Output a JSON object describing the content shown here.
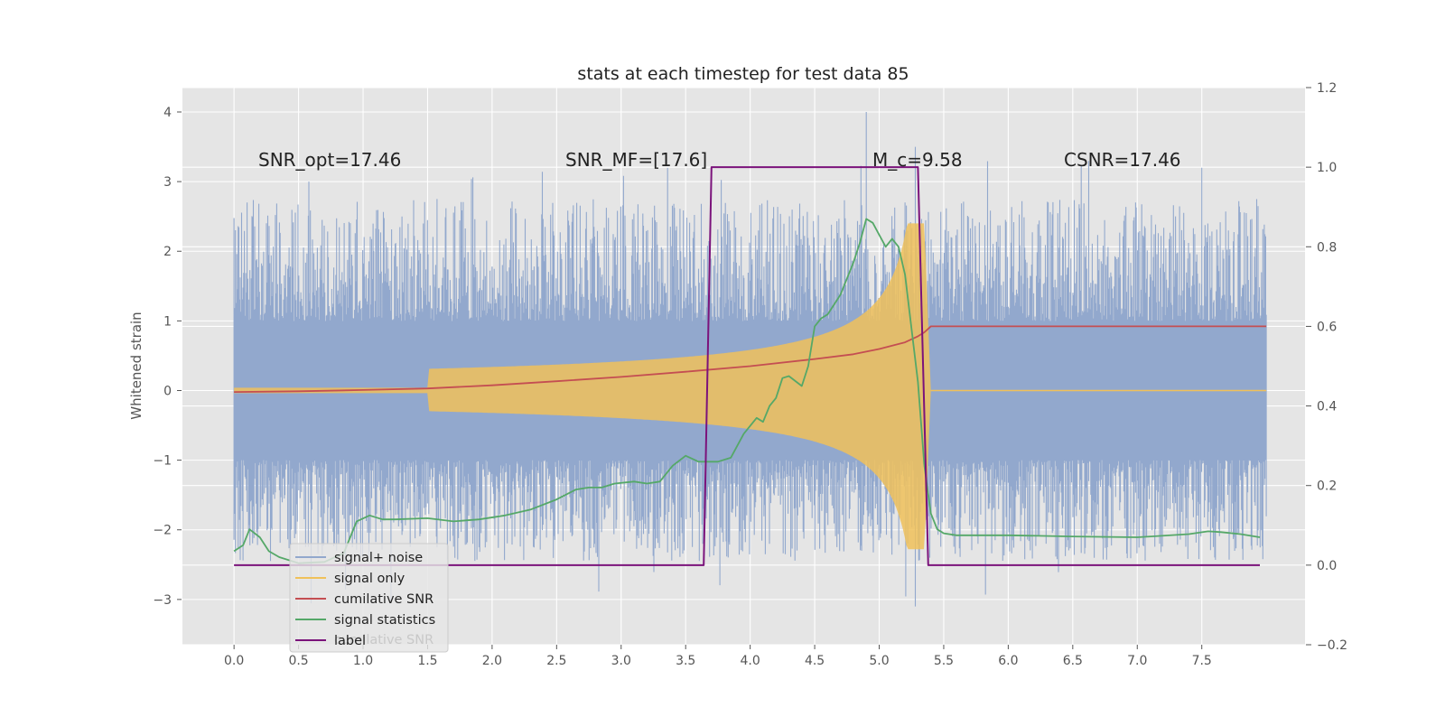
{
  "chart_data": {
    "type": "line",
    "title": "stats at each timestep for test data 85",
    "xlabel": "",
    "ylabel": "Whitened strain",
    "y2label": "",
    "xlim": [
      -0.4,
      8.3
    ],
    "ylim": [
      -3.65,
      4.35
    ],
    "y2lim": [
      -0.2,
      1.2
    ],
    "x_ticks": [
      0.0,
      0.5,
      1.0,
      1.5,
      2.0,
      2.5,
      3.0,
      3.5,
      4.0,
      4.5,
      5.0,
      5.5,
      6.0,
      6.5,
      7.0,
      7.5
    ],
    "x_tick_labels": [
      "0.0",
      "0.5",
      "1.0",
      "1.5",
      "2.0",
      "2.5",
      "3.0",
      "3.5",
      "4.0",
      "4.5",
      "5.0",
      "5.5",
      "6.0",
      "6.5",
      "7.0",
      "7.5"
    ],
    "y_ticks": [
      -3,
      -2,
      -1,
      0,
      1,
      2,
      3,
      4
    ],
    "y_tick_labels": [
      "−3",
      "−2",
      "−1",
      "0",
      "1",
      "2",
      "3",
      "4"
    ],
    "y2_ticks": [
      -0.2,
      0.0,
      0.2,
      0.4,
      0.6,
      0.8,
      1.0,
      1.2
    ],
    "y2_tick_labels": [
      "−0.2",
      "0.0",
      "0.2",
      "0.4",
      "0.6",
      "0.8",
      "1.0",
      "1.2"
    ],
    "grid": true,
    "legend_position": "lower-left",
    "annotations": [
      {
        "id": "snr-opt",
        "text": "SNR_opt=17.46",
        "x": 0.2,
        "y_axis2": 1.0
      },
      {
        "id": "snr-mf",
        "text": "SNR_MF=[17.6]",
        "x": 2.6,
        "y_axis2": 1.0
      },
      {
        "id": "mc",
        "text": "M_c=9.58",
        "x": 5.0,
        "y_axis2": 1.0
      },
      {
        "id": "csnr",
        "text": "CSNR=17.46",
        "x": 6.5,
        "y_axis2": 1.0
      }
    ],
    "series": [
      {
        "name": "signal+ noise",
        "axis": "left",
        "color": "#92a8cd",
        "kind": "noise",
        "x_range": [
          0.0,
          8.0
        ],
        "amplitude_bulk": 0.95,
        "y_max": 4.0,
        "y_min": -3.1
      },
      {
        "name": "signal only",
        "axis": "left",
        "color": "#f0c15a",
        "kind": "chirp",
        "x_range": [
          0.0,
          8.0
        ],
        "merger_time": 5.35,
        "ringdown_end": 5.4,
        "peak_amplitude": 2.4
      },
      {
        "name": "cumilative SNR",
        "axis": "right",
        "color": "#c44e52",
        "kind": "line",
        "x": [
          0.0,
          0.5,
          1.0,
          1.5,
          2.0,
          2.5,
          3.0,
          3.5,
          4.0,
          4.5,
          4.8,
          5.0,
          5.2,
          5.3,
          5.35,
          5.4,
          6.0,
          7.0,
          8.0
        ],
        "y": [
          0.435,
          0.437,
          0.44,
          0.444,
          0.452,
          0.462,
          0.473,
          0.486,
          0.5,
          0.518,
          0.53,
          0.543,
          0.56,
          0.575,
          0.585,
          0.6,
          0.6,
          0.6,
          0.6
        ]
      },
      {
        "name": "signal statistics",
        "axis": "right",
        "color": "#55a868",
        "kind": "line",
        "x": [
          0.0,
          0.07,
          0.12,
          0.2,
          0.27,
          0.35,
          0.5,
          0.7,
          0.85,
          0.95,
          1.05,
          1.15,
          1.25,
          1.5,
          1.7,
          1.9,
          2.1,
          2.3,
          2.5,
          2.65,
          2.75,
          2.85,
          2.95,
          3.1,
          3.2,
          3.3,
          3.4,
          3.5,
          3.6,
          3.75,
          3.85,
          3.95,
          4.05,
          4.1,
          4.15,
          4.2,
          4.25,
          4.3,
          4.4,
          4.45,
          4.5,
          4.55,
          4.6,
          4.7,
          4.8,
          4.85,
          4.9,
          4.95,
          5.0,
          5.05,
          5.1,
          5.15,
          5.2,
          5.3,
          5.35,
          5.4,
          5.45,
          5.5,
          5.6,
          6.0,
          6.5,
          7.0,
          7.4,
          7.55,
          7.65,
          7.8,
          7.95
        ],
        "y": [
          0.035,
          0.05,
          0.09,
          0.07,
          0.035,
          0.02,
          0.005,
          0.008,
          0.03,
          0.11,
          0.125,
          0.115,
          0.115,
          0.118,
          0.11,
          0.115,
          0.125,
          0.14,
          0.165,
          0.19,
          0.195,
          0.195,
          0.205,
          0.21,
          0.205,
          0.21,
          0.25,
          0.275,
          0.26,
          0.26,
          0.27,
          0.33,
          0.37,
          0.36,
          0.4,
          0.42,
          0.47,
          0.475,
          0.45,
          0.5,
          0.6,
          0.62,
          0.63,
          0.68,
          0.76,
          0.81,
          0.87,
          0.86,
          0.83,
          0.8,
          0.82,
          0.8,
          0.73,
          0.46,
          0.25,
          0.13,
          0.09,
          0.08,
          0.075,
          0.075,
          0.072,
          0.07,
          0.078,
          0.085,
          0.083,
          0.078,
          0.07
        ]
      },
      {
        "name": "label",
        "axis": "right",
        "color": "#7b137b",
        "kind": "line",
        "x": [
          0.0,
          3.64,
          3.7,
          5.3,
          5.38,
          7.95
        ],
        "y": [
          0.0,
          0.0,
          1.0,
          1.0,
          0.0,
          0.0
        ]
      }
    ],
    "legend": [
      {
        "name": "signal+ noise",
        "color": "#92a8cd"
      },
      {
        "name": "signal only",
        "color": "#f0c15a"
      },
      {
        "name": "cumilative SNR",
        "color": "#c44e52"
      },
      {
        "name": "signal statistics",
        "color": "#55a868"
      },
      {
        "name": "label",
        "color": "#7b137b"
      }
    ],
    "ghost_legend_text": "cumilative SNR"
  }
}
